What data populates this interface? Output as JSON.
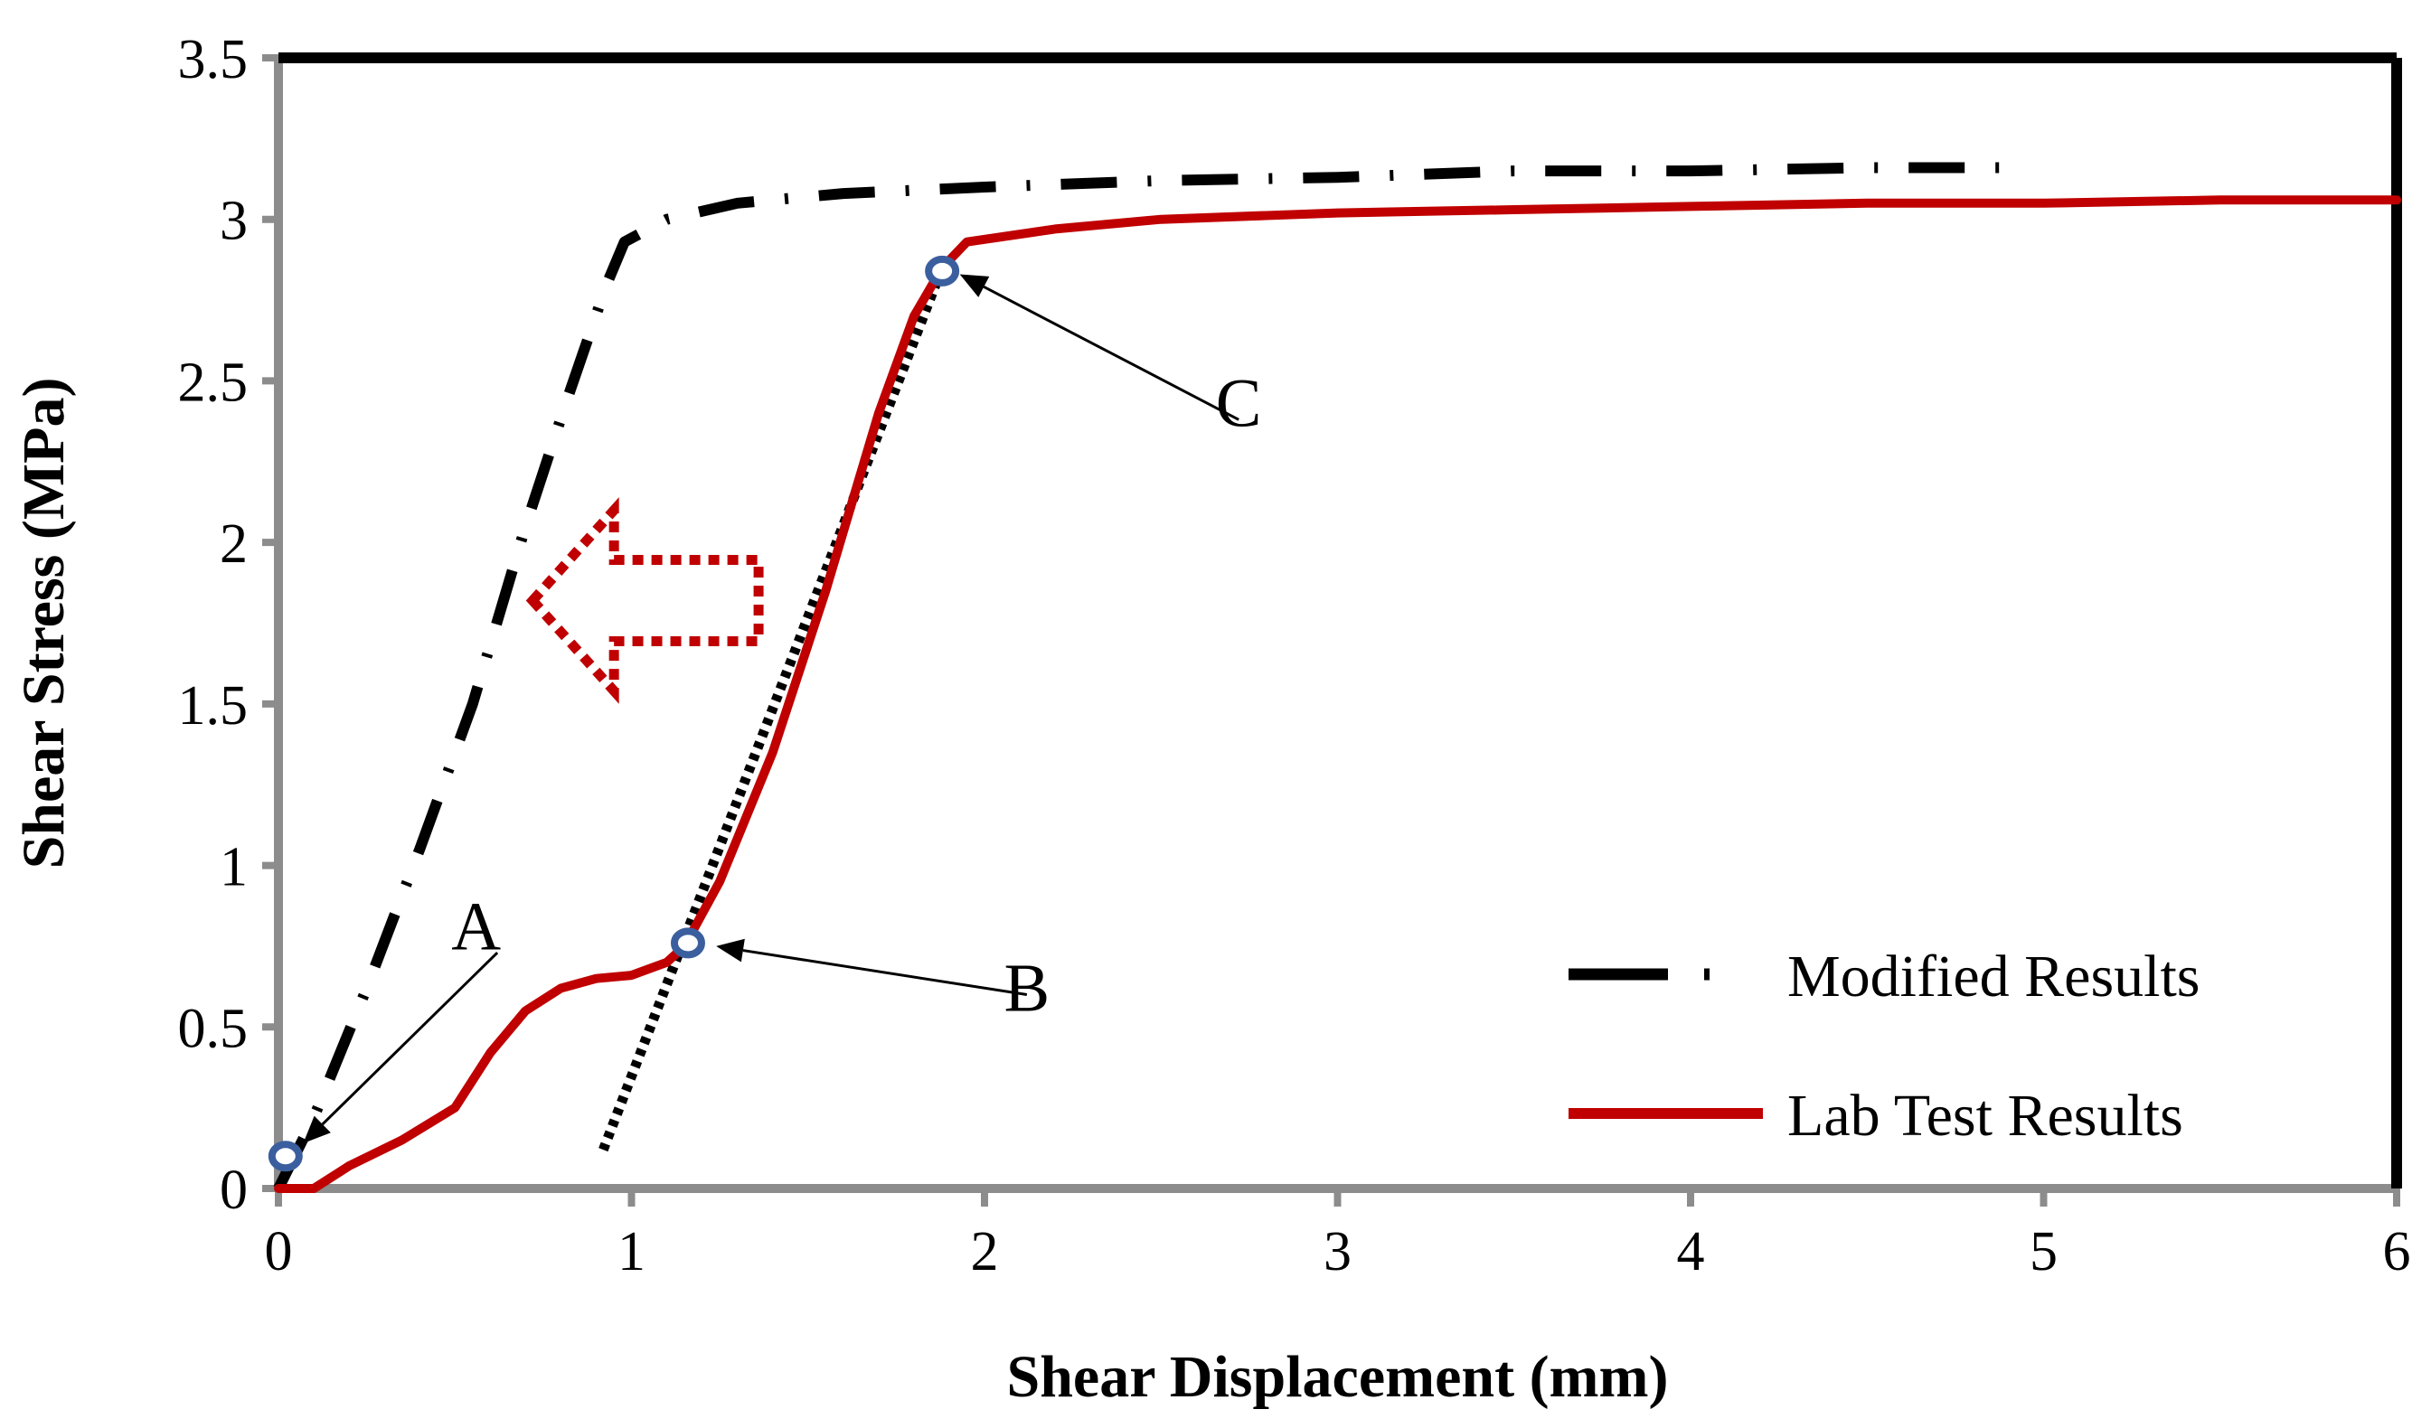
{
  "chart_data": {
    "type": "line",
    "title": "",
    "xlabel": "Shear Displacement (mm)",
    "ylabel": "Shear Stress (MPa)",
    "xlim": [
      0,
      6
    ],
    "ylim": [
      0,
      3.5
    ],
    "x_ticks": [
      "0",
      "1",
      "2",
      "3",
      "4",
      "5",
      "6"
    ],
    "y_ticks": [
      "0",
      "0.5",
      "1",
      "1.5",
      "2",
      "2.5",
      "3",
      "3.5"
    ],
    "grid": false,
    "legend_position": "bottom-right",
    "series": [
      {
        "name": "Modified Results",
        "style": "dash-dot",
        "color": "#000000",
        "points": [
          [
            0.0,
            0.0
          ],
          [
            0.1,
            0.22
          ],
          [
            0.25,
            0.62
          ],
          [
            0.4,
            1.05
          ],
          [
            0.55,
            1.5
          ],
          [
            0.7,
            2.05
          ],
          [
            0.82,
            2.45
          ],
          [
            0.93,
            2.8
          ],
          [
            0.98,
            2.93
          ],
          [
            1.1,
            3.0
          ],
          [
            1.3,
            3.05
          ],
          [
            1.6,
            3.08
          ],
          [
            2.0,
            3.1
          ],
          [
            2.5,
            3.12
          ],
          [
            3.0,
            3.13
          ],
          [
            3.5,
            3.15
          ],
          [
            4.0,
            3.15
          ],
          [
            4.5,
            3.16
          ],
          [
            4.95,
            3.16
          ]
        ]
      },
      {
        "name": "Lab Test Results",
        "style": "solid",
        "color": "#c00000",
        "points": [
          [
            0.0,
            0.0
          ],
          [
            0.1,
            0.0
          ],
          [
            0.2,
            0.07
          ],
          [
            0.35,
            0.15
          ],
          [
            0.5,
            0.25
          ],
          [
            0.6,
            0.42
          ],
          [
            0.7,
            0.55
          ],
          [
            0.8,
            0.62
          ],
          [
            0.9,
            0.65
          ],
          [
            1.0,
            0.66
          ],
          [
            1.1,
            0.7
          ],
          [
            1.15,
            0.75
          ],
          [
            1.25,
            0.95
          ],
          [
            1.4,
            1.35
          ],
          [
            1.55,
            1.85
          ],
          [
            1.7,
            2.4
          ],
          [
            1.8,
            2.7
          ],
          [
            1.88,
            2.85
          ],
          [
            1.95,
            2.93
          ],
          [
            2.2,
            2.97
          ],
          [
            2.5,
            3.0
          ],
          [
            3.0,
            3.02
          ],
          [
            3.5,
            3.03
          ],
          [
            4.0,
            3.04
          ],
          [
            4.5,
            3.05
          ],
          [
            5.0,
            3.05
          ],
          [
            5.5,
            3.06
          ],
          [
            6.0,
            3.06
          ]
        ]
      }
    ],
    "trend_line": {
      "style": "dotted",
      "color": "#000000",
      "points": [
        [
          0.92,
          0.12
        ],
        [
          1.88,
          2.85
        ]
      ]
    },
    "markers": [
      {
        "label": "A",
        "x": 0.02,
        "y": 0.1
      },
      {
        "label": "B",
        "x": 1.16,
        "y": 0.76
      },
      {
        "label": "C",
        "x": 1.88,
        "y": 2.84
      }
    ],
    "annotations": [
      {
        "label": "A",
        "text_x": 0.62,
        "text_y": 0.73,
        "arrow_to": [
          0.07,
          0.14
        ]
      },
      {
        "label": "B",
        "text_x": 2.12,
        "text_y": 0.6,
        "arrow_to": [
          1.24,
          0.75
        ]
      },
      {
        "label": "C",
        "text_x": 2.72,
        "text_y": 2.38,
        "arrow_to": [
          1.93,
          2.83
        ]
      }
    ],
    "shift_arrow": {
      "direction": "left",
      "color": "#c00000",
      "from_x": 1.36,
      "to_x": 0.72,
      "y": 1.82
    }
  }
}
